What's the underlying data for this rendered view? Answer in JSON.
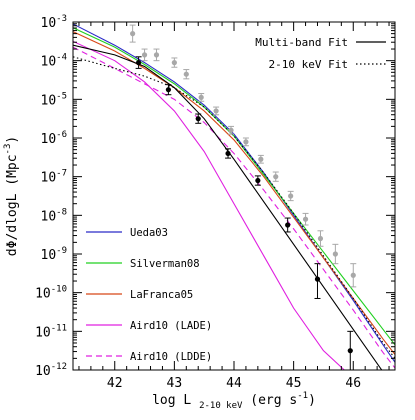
{
  "chart_data": {
    "type": "line",
    "xlabel": {
      "base": "log L",
      "sub": "2-10 keV",
      "unit": " (erg s",
      "unit_exp": "-1",
      "close": ")"
    },
    "ylabel": {
      "text": "dΦ/dlogL (Mpc",
      "exp": "-3",
      "close": ")"
    },
    "xlim": [
      41.3,
      46.7
    ],
    "ylim_log10": [
      -12,
      -3
    ],
    "y_log_scale": true,
    "grid": false,
    "x_ticks": [
      {
        "value": 42,
        "label": "42"
      },
      {
        "value": 43,
        "label": "43"
      },
      {
        "value": 44,
        "label": "44"
      },
      {
        "value": 45,
        "label": "45"
      },
      {
        "value": 46,
        "label": "46"
      }
    ],
    "y_ticks": [
      {
        "value": -3,
        "mant": "10",
        "exp": "-3"
      },
      {
        "value": -4,
        "mant": "10",
        "exp": "-4"
      },
      {
        "value": -5,
        "mant": "10",
        "exp": "-5"
      },
      {
        "value": -6,
        "mant": "10",
        "exp": "-6"
      },
      {
        "value": -7,
        "mant": "10",
        "exp": "-7"
      },
      {
        "value": -8,
        "mant": "10",
        "exp": "-8"
      },
      {
        "value": -9,
        "mant": "10",
        "exp": "-9"
      },
      {
        "value": -10,
        "mant": "10",
        "exp": "-10"
      },
      {
        "value": -11,
        "mant": "10",
        "exp": "-11"
      },
      {
        "value": -12,
        "mant": "10",
        "exp": "-12"
      }
    ],
    "fit_legend": [
      {
        "label": "Multi-band Fit",
        "color": "#000000",
        "dash": ""
      },
      {
        "label": "2-10 keV Fit",
        "color": "#000000",
        "dash": "1.5,2.5"
      }
    ],
    "series": [
      {
        "name": "Ueda03",
        "color": "#2b2bc8",
        "dash": "",
        "x": [
          41.3,
          42.0,
          42.5,
          43.0,
          43.5,
          44.0,
          44.5,
          45.0,
          45.5,
          46.0,
          46.5,
          46.7
        ],
        "y_log10": [
          -3.05,
          -3.6,
          -4.05,
          -4.55,
          -5.15,
          -5.9,
          -6.9,
          -8.0,
          -9.1,
          -10.2,
          -11.35,
          -11.8
        ]
      },
      {
        "name": "Silverman08",
        "color": "#20d020",
        "dash": "",
        "x": [
          41.3,
          42.0,
          42.5,
          43.0,
          43.5,
          44.0,
          44.5,
          45.0,
          45.5,
          46.0,
          46.5,
          46.7
        ],
        "y_log10": [
          -3.15,
          -3.65,
          -4.1,
          -4.6,
          -5.2,
          -5.95,
          -6.95,
          -7.95,
          -8.95,
          -9.95,
          -10.95,
          -11.35
        ]
      },
      {
        "name": "LaFranca05",
        "color": "#d84818",
        "dash": "",
        "x": [
          41.3,
          42.0,
          42.5,
          43.0,
          43.5,
          44.0,
          44.5,
          45.0,
          45.5,
          46.0,
          46.5,
          46.7
        ],
        "y_log10": [
          -3.25,
          -3.75,
          -4.2,
          -4.7,
          -5.3,
          -6.05,
          -7.0,
          -8.05,
          -9.1,
          -10.15,
          -11.2,
          -11.6
        ]
      },
      {
        "name": "Aird10 (LADE)",
        "color": "#e020e0",
        "dash": "",
        "x": [
          41.3,
          42.0,
          42.5,
          43.0,
          43.5,
          44.0,
          44.5,
          45.0,
          45.5,
          45.85
        ],
        "y_log10": [
          -3.5,
          -4.0,
          -4.55,
          -5.3,
          -6.35,
          -7.7,
          -9.05,
          -10.4,
          -11.5,
          -12.0
        ]
      },
      {
        "name": "Aird10 (LDDE)",
        "color": "#e020e0",
        "dash": "6,4",
        "x": [
          41.3,
          42.0,
          42.5,
          43.0,
          43.5,
          44.0,
          44.5,
          45.0,
          45.5,
          46.0,
          46.5,
          46.7
        ],
        "y_log10": [
          -3.65,
          -4.2,
          -4.6,
          -5.0,
          -5.6,
          -6.4,
          -7.35,
          -8.35,
          -9.4,
          -10.45,
          -11.55,
          -11.95
        ]
      },
      {
        "name": "Multi-band Fit",
        "color": "#000000",
        "dash": "",
        "x": [
          41.3,
          42.0,
          42.5,
          43.0,
          43.5,
          44.0,
          44.5,
          45.0,
          45.5,
          46.0,
          46.5,
          46.7
        ],
        "y_log10": [
          -3.6,
          -3.85,
          -4.15,
          -4.7,
          -5.5,
          -6.55,
          -7.65,
          -8.75,
          -9.85,
          -10.95,
          -12.05,
          -12.45
        ]
      },
      {
        "name": "2-10 keV Fit",
        "color": "#000000",
        "dash": "1.5,2.5",
        "x": [
          41.3,
          42.0,
          42.5,
          43.0,
          43.5,
          44.0,
          44.5,
          45.0,
          45.5,
          46.0,
          46.5,
          46.7
        ],
        "y_log10": [
          -3.9,
          -4.2,
          -4.4,
          -4.7,
          -5.2,
          -5.95,
          -6.9,
          -7.95,
          -9.05,
          -10.15,
          -11.3,
          -11.7
        ]
      }
    ],
    "points_black": [
      {
        "x": 42.4,
        "y_log10": -4.05,
        "err_lo": 0.15,
        "err_hi": 0.15
      },
      {
        "x": 42.9,
        "y_log10": -4.75,
        "err_lo": 0.13,
        "err_hi": 0.13
      },
      {
        "x": 43.4,
        "y_log10": -5.5,
        "err_lo": 0.12,
        "err_hi": 0.12
      },
      {
        "x": 43.9,
        "y_log10": -6.4,
        "err_lo": 0.12,
        "err_hi": 0.12
      },
      {
        "x": 44.4,
        "y_log10": -7.1,
        "err_lo": 0.12,
        "err_hi": 0.12
      },
      {
        "x": 44.9,
        "y_log10": -8.25,
        "err_lo": 0.18,
        "err_hi": 0.18
      },
      {
        "x": 45.4,
        "y_log10": -9.65,
        "err_lo": 0.5,
        "err_hi": 0.4
      },
      {
        "x": 45.95,
        "y_log10": -11.5,
        "err_lo": 0.5,
        "err_hi": 0.5
      }
    ],
    "points_grey": [
      {
        "x": 42.3,
        "y_log10": -3.3,
        "err_lo": 0.22,
        "err_hi": 0.22
      },
      {
        "x": 42.5,
        "y_log10": -3.85,
        "err_lo": 0.15,
        "err_hi": 0.15
      },
      {
        "x": 42.7,
        "y_log10": -3.85,
        "err_lo": 0.15,
        "err_hi": 0.15
      },
      {
        "x": 43.0,
        "y_log10": -4.05,
        "err_lo": 0.12,
        "err_hi": 0.12
      },
      {
        "x": 43.2,
        "y_log10": -4.35,
        "err_lo": 0.12,
        "err_hi": 0.12
      },
      {
        "x": 43.45,
        "y_log10": -4.95,
        "err_lo": 0.1,
        "err_hi": 0.1
      },
      {
        "x": 43.7,
        "y_log10": -5.3,
        "err_lo": 0.1,
        "err_hi": 0.1
      },
      {
        "x": 43.95,
        "y_log10": -5.8,
        "err_lo": 0.1,
        "err_hi": 0.1
      },
      {
        "x": 44.2,
        "y_log10": -6.1,
        "err_lo": 0.1,
        "err_hi": 0.1
      },
      {
        "x": 44.45,
        "y_log10": -6.55,
        "err_lo": 0.1,
        "err_hi": 0.1
      },
      {
        "x": 44.7,
        "y_log10": -7.0,
        "err_lo": 0.12,
        "err_hi": 0.12
      },
      {
        "x": 44.95,
        "y_log10": -7.5,
        "err_lo": 0.12,
        "err_hi": 0.12
      },
      {
        "x": 45.2,
        "y_log10": -8.1,
        "err_lo": 0.15,
        "err_hi": 0.15
      },
      {
        "x": 45.45,
        "y_log10": -8.6,
        "err_lo": 0.2,
        "err_hi": 0.2
      },
      {
        "x": 45.7,
        "y_log10": -9.0,
        "err_lo": 0.25,
        "err_hi": 0.25
      },
      {
        "x": 46.0,
        "y_log10": -9.55,
        "err_lo": 0.3,
        "err_hi": 0.3
      }
    ],
    "point_colors": {
      "black": "#000000",
      "grey": "#a8a8a8"
    }
  }
}
